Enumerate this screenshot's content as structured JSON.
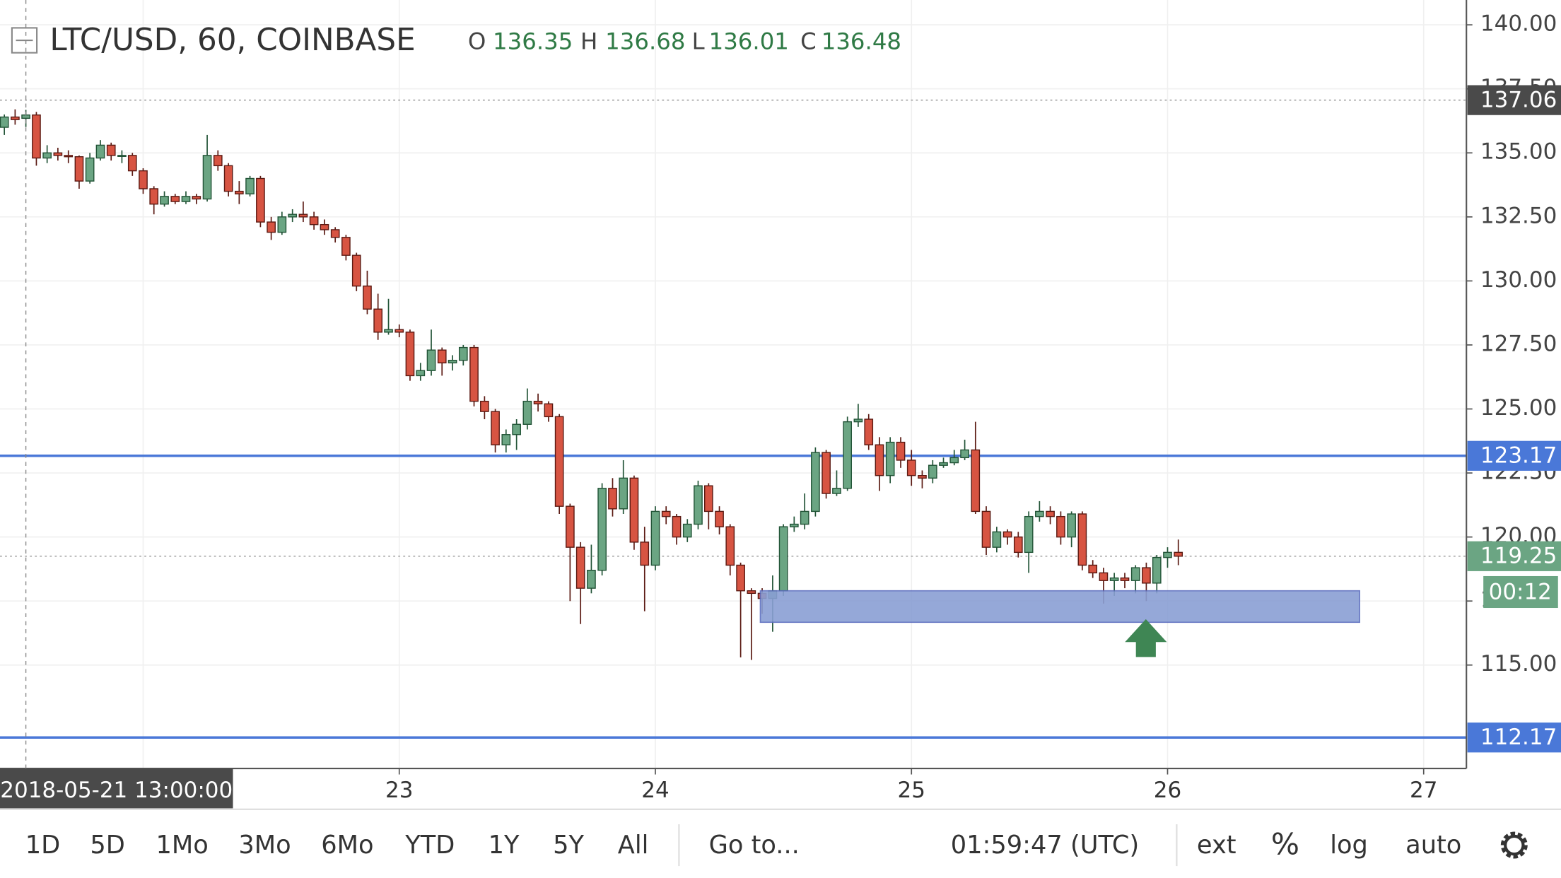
{
  "chart_data": {
    "type": "candlestick",
    "title": "LTC/USD, 60, COINBASE",
    "ohlc": [
      {
        "label": "O",
        "value": 136.35
      },
      {
        "label": "H",
        "value": 136.68
      },
      {
        "label": "L",
        "value": 136.01
      },
      {
        "label": "C",
        "value": 136.48
      }
    ],
    "x": [
      21.458,
      21.5,
      21.542,
      21.583,
      21.625,
      21.667,
      21.708,
      21.75,
      21.792,
      21.833,
      21.875,
      21.917,
      21.958,
      22,
      22.042,
      22.083,
      22.125,
      22.167,
      22.208,
      22.25,
      22.292,
      22.333,
      22.375,
      22.417,
      22.458,
      22.5,
      22.542,
      22.583,
      22.625,
      22.667,
      22.708,
      22.75,
      22.792,
      22.833,
      22.875,
      22.917,
      22.958,
      23,
      23.042,
      23.083,
      23.125,
      23.167,
      23.208,
      23.25,
      23.292,
      23.333,
      23.375,
      23.417,
      23.458,
      23.5,
      23.542,
      23.583,
      23.625,
      23.667,
      23.708,
      23.75,
      23.792,
      23.833,
      23.875,
      23.917,
      23.958,
      24,
      24.042,
      24.083,
      24.125,
      24.167,
      24.208,
      24.25,
      24.292,
      24.333,
      24.375,
      24.417,
      24.458,
      24.5,
      24.542,
      24.583,
      24.625,
      24.667,
      24.708,
      24.75,
      24.792,
      24.833,
      24.875,
      24.917,
      24.958,
      25,
      25.042,
      25.083,
      25.125,
      25.167,
      25.208,
      25.25,
      25.292,
      25.333,
      25.375,
      25.417,
      25.458,
      25.5,
      25.542,
      25.583,
      25.625,
      25.667,
      25.708,
      25.75,
      25.792,
      25.833,
      25.875,
      25.917,
      25.958,
      26,
      26.042
    ],
    "open": [
      136.0,
      136.4,
      136.35,
      136.48,
      134.8,
      135.0,
      134.9,
      134.85,
      133.9,
      134.8,
      135.3,
      134.9,
      134.9,
      134.3,
      133.6,
      133.0,
      133.3,
      133.1,
      133.3,
      133.2,
      134.9,
      134.5,
      133.5,
      133.4,
      134.0,
      132.3,
      131.9,
      132.5,
      132.6,
      132.5,
      132.2,
      132.0,
      131.7,
      131.0,
      129.8,
      128.9,
      128.0,
      128.1,
      128.0,
      126.3,
      126.5,
      127.3,
      126.8,
      126.9,
      127.4,
      125.3,
      124.9,
      123.6,
      124.0,
      124.4,
      125.3,
      125.2,
      124.7,
      121.2,
      119.6,
      118.0,
      118.7,
      121.9,
      121.1,
      122.3,
      119.8,
      118.9,
      121.0,
      120.8,
      120.0,
      120.5,
      122.0,
      121.0,
      120.4,
      118.9,
      117.9,
      117.8,
      117.6,
      117.9,
      120.4,
      120.5,
      121.0,
      123.3,
      121.7,
      121.9,
      124.5,
      124.6,
      123.6,
      122.4,
      123.7,
      123.0,
      122.4,
      122.3,
      122.8,
      122.9,
      123.1,
      123.4,
      121.0,
      119.6,
      120.2,
      120.0,
      119.4,
      120.8,
      121.0,
      120.8,
      120.0,
      120.9,
      118.9,
      118.6,
      118.3,
      118.4,
      118.3,
      118.8,
      118.2,
      119.2,
      119.4
    ],
    "high": [
      136.5,
      136.7,
      136.68,
      136.6,
      135.3,
      135.2,
      135.1,
      134.9,
      135.0,
      135.5,
      135.4,
      135.1,
      135.0,
      134.4,
      133.7,
      133.5,
      133.4,
      133.5,
      133.4,
      135.7,
      135.1,
      134.6,
      133.9,
      134.1,
      134.1,
      132.5,
      132.7,
      132.8,
      133.1,
      132.7,
      132.4,
      132.1,
      131.8,
      131.1,
      130.4,
      129.5,
      129.3,
      128.3,
      128.1,
      126.8,
      128.1,
      127.4,
      127.1,
      127.5,
      127.5,
      125.5,
      125.0,
      124.2,
      124.6,
      125.8,
      125.6,
      125.3,
      124.8,
      121.3,
      119.8,
      119.7,
      122.1,
      122.3,
      123.0,
      122.4,
      120.4,
      121.2,
      121.2,
      120.9,
      120.7,
      122.2,
      122.1,
      121.2,
      120.5,
      119.0,
      118.0,
      118.0,
      118.5,
      120.5,
      120.8,
      121.7,
      123.5,
      123.4,
      122.6,
      124.7,
      125.2,
      124.8,
      123.9,
      123.9,
      123.9,
      123.4,
      122.6,
      123.0,
      123.1,
      123.4,
      123.8,
      124.5,
      121.2,
      120.4,
      120.3,
      120.2,
      121.0,
      121.4,
      121.2,
      121.0,
      121.0,
      121.0,
      119.1,
      118.8,
      118.6,
      118.6,
      118.9,
      119.0,
      119.3,
      119.6,
      119.9
    ],
    "low": [
      135.7,
      136.1,
      136.01,
      134.5,
      134.6,
      134.7,
      134.6,
      133.6,
      133.8,
      134.7,
      134.7,
      134.6,
      134.1,
      133.4,
      132.6,
      132.9,
      133.0,
      133.0,
      133.0,
      133.1,
      134.3,
      133.3,
      133.0,
      133.3,
      132.1,
      131.6,
      131.8,
      132.3,
      132.3,
      132.0,
      131.8,
      131.5,
      130.8,
      129.6,
      128.7,
      127.7,
      127.9,
      127.8,
      126.1,
      126.1,
      126.3,
      126.3,
      126.5,
      126.7,
      125.1,
      124.6,
      123.3,
      123.3,
      123.4,
      124.2,
      124.9,
      124.5,
      120.9,
      117.5,
      116.6,
      117.8,
      118.5,
      120.8,
      120.9,
      119.5,
      117.1,
      118.7,
      120.5,
      119.7,
      119.8,
      120.3,
      120.3,
      120.1,
      118.5,
      115.3,
      115.2,
      117.0,
      116.3,
      117.7,
      120.2,
      120.3,
      120.8,
      121.5,
      121.6,
      121.8,
      124.3,
      123.4,
      121.8,
      122.1,
      122.7,
      122.0,
      121.9,
      122.1,
      122.7,
      122.8,
      123.0,
      120.9,
      119.3,
      119.4,
      119.7,
      119.2,
      118.6,
      120.6,
      120.5,
      119.7,
      119.6,
      118.7,
      118.4,
      117.4,
      117.7,
      118.0,
      117.8,
      117.5,
      117.8,
      118.8,
      118.9
    ],
    "close": [
      136.4,
      136.3,
      136.48,
      134.8,
      135.0,
      134.9,
      134.85,
      133.9,
      134.8,
      135.3,
      134.9,
      134.9,
      134.3,
      133.6,
      133.0,
      133.3,
      133.1,
      133.3,
      133.2,
      134.9,
      134.5,
      133.5,
      133.4,
      134.0,
      132.3,
      131.9,
      132.5,
      132.6,
      132.5,
      132.2,
      132.0,
      131.7,
      131.0,
      129.8,
      128.9,
      128.0,
      128.1,
      128.0,
      126.3,
      126.5,
      127.3,
      126.8,
      126.9,
      127.4,
      125.3,
      124.9,
      123.6,
      124.0,
      124.4,
      125.3,
      125.2,
      124.7,
      121.2,
      119.6,
      118.0,
      118.7,
      121.9,
      121.1,
      122.3,
      119.8,
      118.9,
      121.0,
      120.8,
      120.0,
      120.5,
      122.0,
      121.0,
      120.4,
      118.9,
      117.9,
      117.8,
      117.6,
      117.9,
      120.4,
      120.5,
      121.0,
      123.3,
      121.7,
      121.9,
      124.5,
      124.6,
      123.6,
      122.4,
      123.7,
      123.0,
      122.4,
      122.3,
      122.8,
      122.9,
      123.1,
      123.4,
      121.0,
      119.6,
      120.2,
      120.0,
      119.4,
      120.8,
      121.0,
      120.8,
      120.0,
      120.9,
      118.9,
      118.6,
      118.3,
      118.4,
      118.3,
      118.8,
      118.2,
      119.2,
      119.4,
      119.25
    ],
    "up_color": "#6ba583",
    "down_color": "#d75442",
    "xlim": [
      21.441,
      27.167
    ],
    "xticks": [
      22,
      23,
      24,
      25,
      26,
      27
    ],
    "ylim": [
      110.96,
      140.97
    ],
    "yticks": [
      {
        "value": 115,
        "label": "115.00"
      },
      {
        "value": 117.5,
        "label": "117.50"
      },
      {
        "value": 120,
        "label": "120.00"
      },
      {
        "value": 122.5,
        "label": "122.50"
      },
      {
        "value": 125,
        "label": "125.00"
      },
      {
        "value": 127.5,
        "label": "127.50"
      },
      {
        "value": 130,
        "label": "130.00"
      },
      {
        "value": 132.5,
        "label": "132.50"
      },
      {
        "value": 135,
        "label": "135.00"
      },
      {
        "value": 137.5,
        "label": "137.50"
      },
      {
        "value": 140,
        "label": "140.00"
      }
    ],
    "grid": true,
    "price_lines": [
      {
        "value": 137.06,
        "color": "#4a4a4a",
        "style": "dotted"
      },
      {
        "value": 123.17,
        "color": "#4a78d8",
        "style": "solid"
      },
      {
        "value": 119.25,
        "color": "#6ba583",
        "style": "dotted"
      },
      {
        "value": 112.17,
        "color": "#4a78d8",
        "style": "solid"
      }
    ],
    "countdown": "00:12",
    "zone": {
      "x": [
        24.41,
        26.75
      ],
      "y": [
        116.67,
        117.9
      ],
      "color": "#8a9fd4"
    },
    "crosshair": {
      "x": 21.542,
      "label": "2018-05-21 13:00:00"
    },
    "toolbar": {
      "ranges": [
        "1D",
        "5D",
        "1Mo",
        "3Mo",
        "6Mo",
        "YTD",
        "1Y",
        "5Y",
        "All"
      ],
      "goto": "Go to...",
      "clock": "01:59:47 (UTC)",
      "options": [
        "ext",
        "%",
        "log",
        "auto"
      ]
    }
  }
}
